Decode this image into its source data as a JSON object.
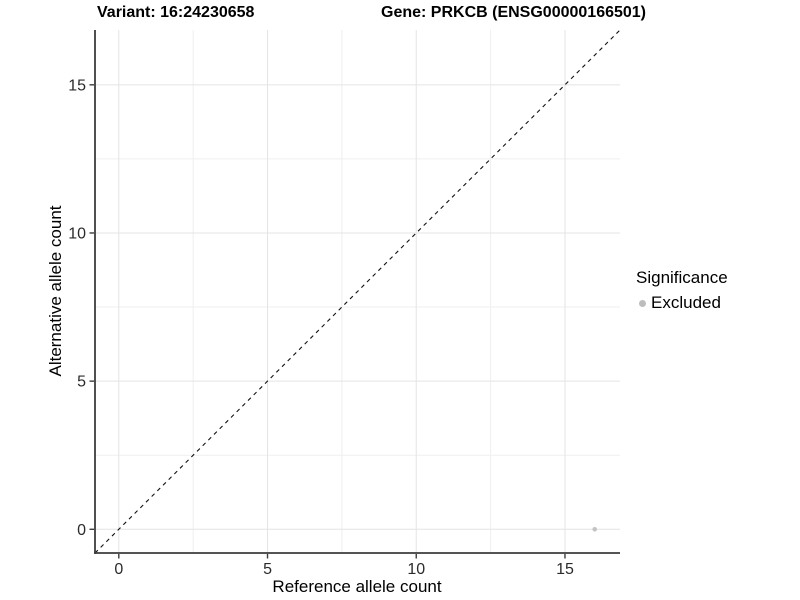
{
  "colors": {
    "background": "#ffffff",
    "axis_line": "#3c3c3c",
    "grid_major": "#e4e4e4",
    "grid_minor": "#efefef",
    "tick_mark": "#3c3c3c",
    "tick_text": "#2b2b2b",
    "identity_line": "#111111",
    "point": "#c3c3c3",
    "legend_dot": "#bdbdbd"
  },
  "chart_data": {
    "type": "scatter",
    "title_left": "Variant: 16:24230658",
    "title_right": "Gene: PRKCB (ENSG00000166501)",
    "xlabel": "Reference allele count",
    "ylabel": "Alternative allele count",
    "xlim": [
      -0.8,
      16.85
    ],
    "ylim": [
      -0.8,
      16.85
    ],
    "xticks": [
      0,
      5,
      10,
      15
    ],
    "yticks": [
      0,
      5,
      10,
      15
    ],
    "xminor": [
      2.5,
      7.5,
      12.5
    ],
    "yminor": [
      2.5,
      7.5,
      12.5
    ],
    "grid": true,
    "identity_line": {
      "slope": 1,
      "intercept": 0,
      "style": "dashed"
    },
    "series": [
      {
        "name": "Excluded",
        "points": [
          {
            "x": 16,
            "y": 0
          }
        ]
      }
    ],
    "legend": {
      "position": "right",
      "title": "Significance",
      "items": [
        {
          "label": "Excluded"
        }
      ]
    }
  }
}
